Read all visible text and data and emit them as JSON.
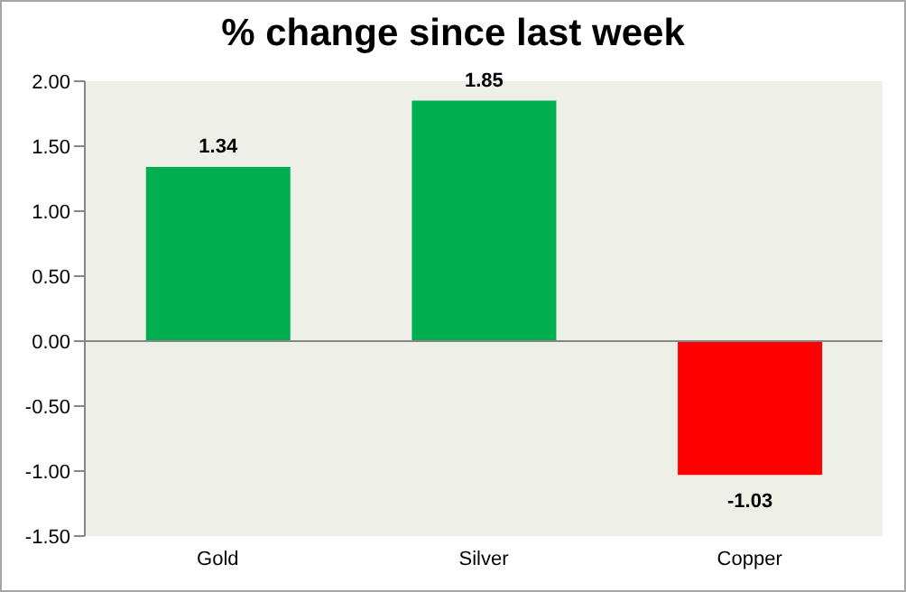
{
  "chart_data": {
    "type": "bar",
    "title": "% change since last week",
    "categories": [
      "Gold",
      "Silver",
      "Copper"
    ],
    "values": [
      1.34,
      1.85,
      -1.03
    ],
    "colors": [
      "#00b050",
      "#00b050",
      "#ff0000"
    ],
    "ylim": [
      -1.5,
      2.0
    ],
    "yticks": [
      {
        "value": -1.5,
        "label": "-1.50"
      },
      {
        "value": -1.0,
        "label": "-1.00"
      },
      {
        "value": -0.5,
        "label": "-0.50"
      },
      {
        "value": 0,
        "label": "0.00"
      },
      {
        "value": 0.5,
        "label": "0.50"
      },
      {
        "value": 1.0,
        "label": "1.00"
      },
      {
        "value": 1.5,
        "label": "1.50"
      },
      {
        "value": 2.0,
        "label": "2.00"
      }
    ],
    "ref_lines": [
      {
        "axis": "y",
        "value": 0,
        "color": "#868686"
      }
    ],
    "data_labels": true,
    "grid": false,
    "legend": false
  }
}
